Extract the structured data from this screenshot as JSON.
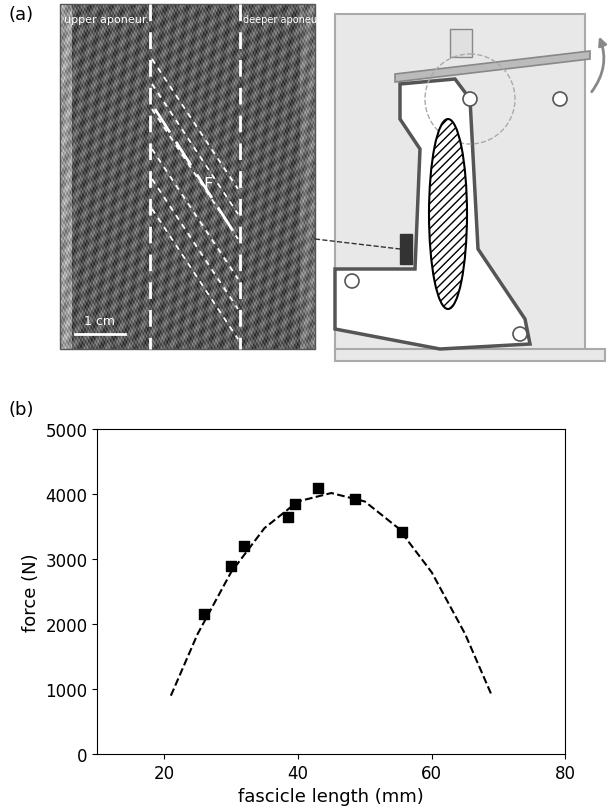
{
  "panel_labels": [
    "(a)",
    "(b)"
  ],
  "diagram": {
    "image_labels": {
      "left": "upper aponeur.",
      "right": "deeper aponeur.",
      "fascicle": "F",
      "scale_bar": "1 cm"
    }
  },
  "chart_data": {
    "type": "scatter",
    "xlabel": "fascicle length (mm)",
    "ylabel": "force (N)",
    "xlim": [
      10,
      80
    ],
    "xticks": [
      20,
      40,
      60,
      80
    ],
    "ylim": [
      0,
      5000
    ],
    "yticks": [
      0,
      1000,
      2000,
      3000,
      4000,
      5000
    ],
    "series": [
      {
        "type": "scatter",
        "color": "#000000",
        "marker": "square",
        "x": [
          26,
          30,
          32,
          38.5,
          39.5,
          43,
          48.5,
          55.5
        ],
        "values": [
          2150,
          2900,
          3200,
          3650,
          3850,
          4100,
          3930,
          3420
        ]
      },
      {
        "type": "line",
        "color": "#000000",
        "line_style": "dashed",
        "x": [
          21,
          25,
          30,
          35,
          40,
          45,
          50,
          55,
          60,
          65,
          69
        ],
        "values": [
          900,
          1850,
          2800,
          3480,
          3890,
          4020,
          3890,
          3480,
          2800,
          1850,
          900
        ]
      }
    ]
  }
}
